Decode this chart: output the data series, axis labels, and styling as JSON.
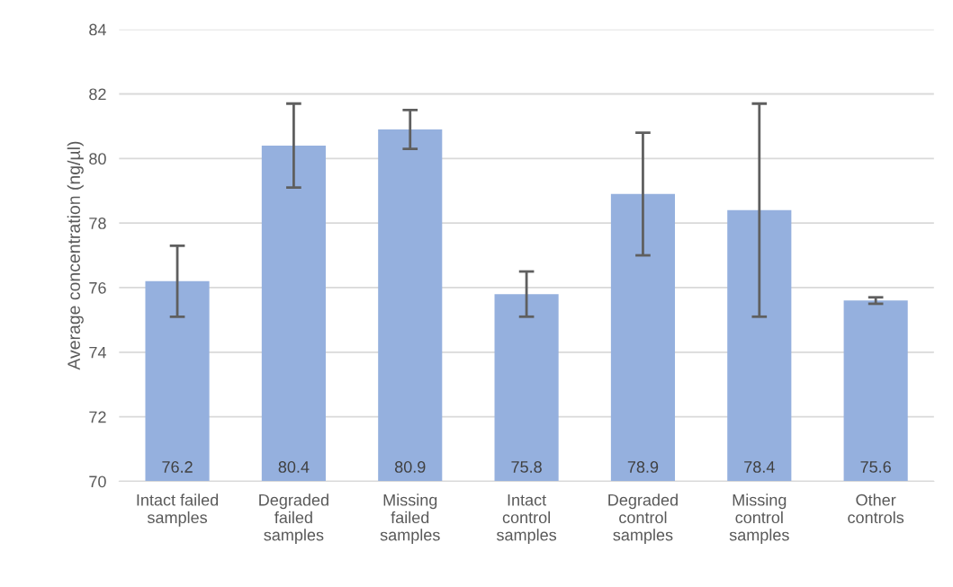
{
  "chart_data": {
    "type": "bar",
    "ylabel": "Average concentration (ng/µl)",
    "categories": [
      "Intact failed\nsamples",
      "Degraded\nfailed\nsamples",
      "Missing\nfailed\nsamples",
      "Intact\ncontrol\nsamples",
      "Degraded\ncontrol\nsamples",
      "Missing\ncontrol\nsamples",
      "Other\ncontrols"
    ],
    "values": [
      76.2,
      80.4,
      80.9,
      75.8,
      78.9,
      78.4,
      75.6
    ],
    "errors": [
      1.1,
      1.3,
      0.6,
      0.7,
      1.9,
      3.3,
      0.1
    ],
    "color": "#95b0de",
    "ylim": [
      70,
      84
    ],
    "yticks": [
      70,
      72,
      74,
      76,
      78,
      80,
      82,
      84
    ],
    "grid": "y",
    "data_labels": true
  }
}
